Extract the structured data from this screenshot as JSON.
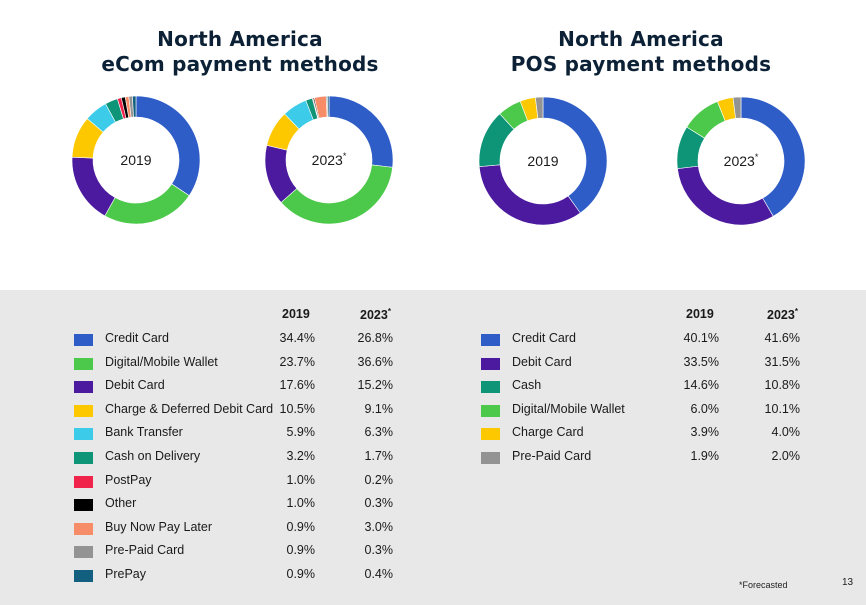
{
  "titles": {
    "ecom_line1": "North America",
    "ecom_line2": "eCom payment methods",
    "pos_line1": "North America",
    "pos_line2": "POS payment methods"
  },
  "chart_data": [
    {
      "type": "pie",
      "title": "North America eCom payment methods",
      "year_labels": [
        "2019",
        "2023*"
      ],
      "columns": [
        "2019",
        "2023"
      ],
      "column_suffix": [
        "",
        "*"
      ],
      "series": [
        {
          "name": "Credit Card",
          "color": "#2f5dc8",
          "values": [
            34.4,
            26.8
          ]
        },
        {
          "name": "Digital/Mobile Wallet",
          "color": "#4cc94a",
          "values": [
            23.7,
            36.6
          ]
        },
        {
          "name": "Debit Card",
          "color": "#4b1a9e",
          "values": [
            17.6,
            15.2
          ]
        },
        {
          "name": "Charge & Deferred Debit Card",
          "color": "#fdc800",
          "values": [
            10.5,
            9.1
          ]
        },
        {
          "name": "Bank Transfer",
          "color": "#3ccbe8",
          "values": [
            5.9,
            6.3
          ]
        },
        {
          "name": "Cash on Delivery",
          "color": "#0e9476",
          "values": [
            3.2,
            1.7
          ]
        },
        {
          "name": "PostPay",
          "color": "#f0234a",
          "values": [
            1.0,
            0.2
          ]
        },
        {
          "name": "Other",
          "color": "#000000",
          "values": [
            1.0,
            0.3
          ]
        },
        {
          "name": "Buy Now Pay Later",
          "color": "#f78c68",
          "values": [
            0.9,
            3.0
          ]
        },
        {
          "name": "Pre-Paid Card",
          "color": "#939393",
          "values": [
            0.9,
            0.3
          ]
        },
        {
          "name": "PrePay",
          "color": "#135f7f",
          "values": [
            0.9,
            0.4
          ]
        }
      ]
    },
    {
      "type": "pie",
      "title": "North America POS payment methods",
      "year_labels": [
        "2019",
        "2023*"
      ],
      "columns": [
        "2019",
        "2023"
      ],
      "column_suffix": [
        "",
        "*"
      ],
      "series": [
        {
          "name": "Credit Card",
          "color": "#2f5dc8",
          "values": [
            40.1,
            41.6
          ]
        },
        {
          "name": "Debit Card",
          "color": "#4b1a9e",
          "values": [
            33.5,
            31.5
          ]
        },
        {
          "name": "Cash",
          "color": "#0e9476",
          "values": [
            14.6,
            10.8
          ]
        },
        {
          "name": "Digital/Mobile Wallet",
          "color": "#4cc94a",
          "values": [
            6.0,
            10.1
          ]
        },
        {
          "name": "Charge Card",
          "color": "#fdc800",
          "values": [
            3.9,
            4.0
          ]
        },
        {
          "name": "Pre-Paid Card",
          "color": "#939393",
          "values": [
            1.9,
            2.0
          ]
        }
      ]
    }
  ],
  "footnote": "*Forecasted",
  "page_number": "13"
}
